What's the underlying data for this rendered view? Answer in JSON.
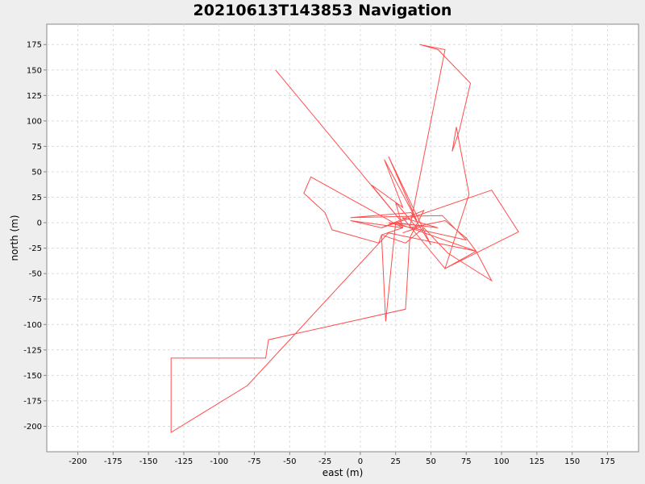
{
  "chart_data": {
    "type": "line",
    "title": "20210613T143853 Navigation",
    "xlabel": "east (m)",
    "ylabel": "north (m)",
    "xlim": [
      -222,
      197
    ],
    "ylim": [
      -225,
      195
    ],
    "xticks": [
      -200,
      -175,
      -150,
      -125,
      -100,
      -75,
      -50,
      -25,
      0,
      25,
      50,
      75,
      100,
      125,
      150,
      175
    ],
    "yticks": [
      175,
      150,
      125,
      100,
      75,
      50,
      25,
      0,
      -25,
      -50,
      -75,
      -100,
      -125,
      -150,
      -175,
      -200
    ],
    "grid": true,
    "legend": "none",
    "series": [
      {
        "color": "#ff4d4d",
        "points": [
          [
            -60,
            150
          ],
          [
            28,
            3
          ],
          [
            8,
            37
          ],
          [
            30,
            15
          ],
          [
            17,
            62
          ],
          [
            40,
            2
          ],
          [
            20,
            65
          ],
          [
            50,
            -22
          ],
          [
            36,
            10
          ],
          [
            -7,
            5
          ],
          [
            58,
            7
          ],
          [
            75,
            -17
          ],
          [
            20,
            0
          ],
          [
            45,
            -3
          ],
          [
            30,
            -10
          ],
          [
            40,
            -5
          ],
          [
            25,
            20
          ],
          [
            30,
            -5
          ],
          [
            -35,
            45
          ],
          [
            -40,
            29
          ],
          [
            -25,
            10
          ],
          [
            -20,
            -7
          ],
          [
            13,
            -20
          ],
          [
            15,
            -12
          ],
          [
            32,
            -20
          ],
          [
            45,
            -5
          ],
          [
            62,
            -30
          ],
          [
            93,
            -57
          ],
          [
            82,
            -28
          ],
          [
            60,
            -45
          ],
          [
            77,
            28
          ],
          [
            68,
            94
          ],
          [
            65,
            70
          ],
          [
            70,
            90
          ],
          [
            78,
            137
          ],
          [
            55,
            170
          ],
          [
            42,
            175
          ],
          [
            60,
            170
          ],
          [
            35,
            -5
          ],
          [
            60,
            2
          ],
          [
            75,
            -15
          ],
          [
            82,
            -28
          ],
          [
            25,
            0
          ],
          [
            15,
            -5
          ],
          [
            93,
            32
          ],
          [
            112,
            -9
          ],
          [
            60,
            -45
          ],
          [
            30,
            5
          ],
          [
            55,
            -5
          ],
          [
            25,
            0
          ],
          [
            18,
            -97
          ],
          [
            15,
            -12
          ],
          [
            30,
            -5
          ],
          [
            -7,
            2
          ],
          [
            15,
            -5
          ],
          [
            45,
            12
          ],
          [
            35,
            -15
          ],
          [
            32,
            -85
          ],
          [
            -65,
            -115
          ],
          [
            -67,
            -133
          ],
          [
            -134,
            -133
          ],
          [
            -134,
            -206
          ],
          [
            -80,
            -160
          ],
          [
            20,
            -10
          ],
          [
            82,
            -28
          ]
        ]
      }
    ]
  }
}
